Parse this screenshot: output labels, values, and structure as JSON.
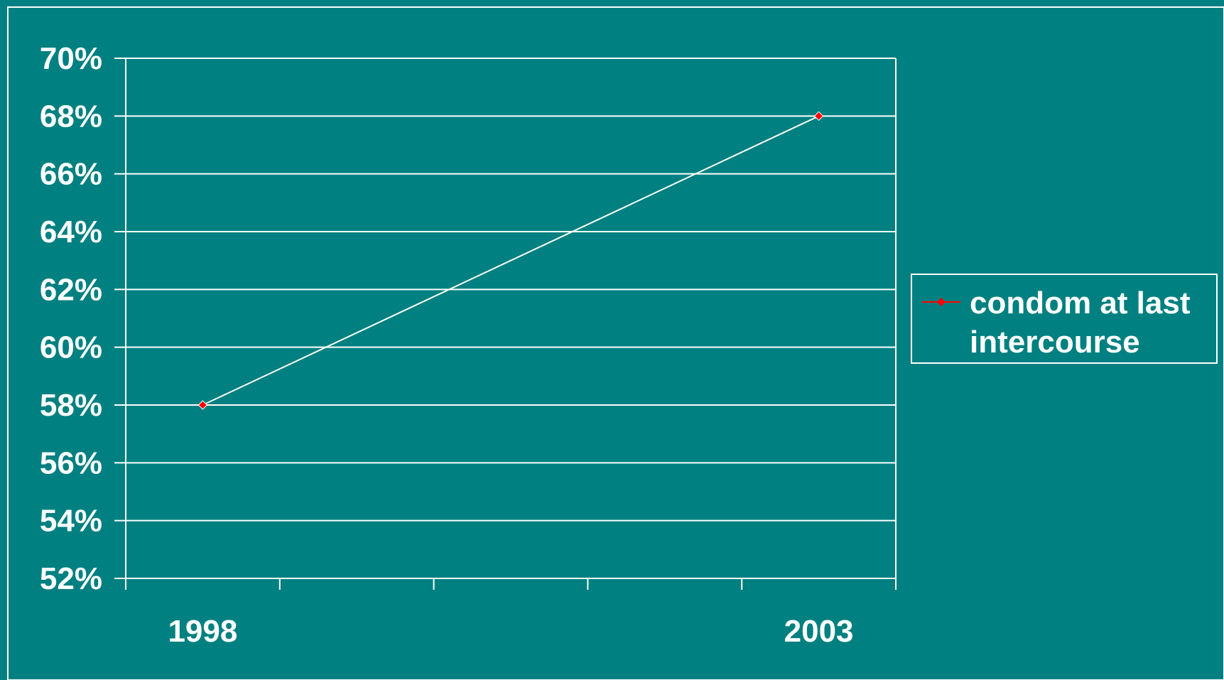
{
  "colors": {
    "background": "#008080",
    "axis": "#ffffff",
    "series": "#ff0000",
    "line": "#ffffff"
  },
  "chart_data": {
    "type": "line",
    "title": "",
    "xlabel": "",
    "ylabel": "",
    "categories": [
      "1998",
      "",
      "",
      "",
      "2003"
    ],
    "x_tick_labels": [
      "1998",
      "2003"
    ],
    "y_tick_labels": [
      "70%",
      "68%",
      "66%",
      "64%",
      "62%",
      "60%",
      "58%",
      "56%",
      "54%",
      "52%"
    ],
    "ylim": [
      0.52,
      0.7
    ],
    "grid": true,
    "legend_position": "right",
    "series": [
      {
        "name": "condom at last intercourse",
        "name_lines": [
          "condom at last",
          "intercourse"
        ],
        "points": [
          {
            "x": "1998",
            "y": 0.58
          },
          {
            "x": "2003",
            "y": 0.68
          }
        ]
      }
    ]
  }
}
